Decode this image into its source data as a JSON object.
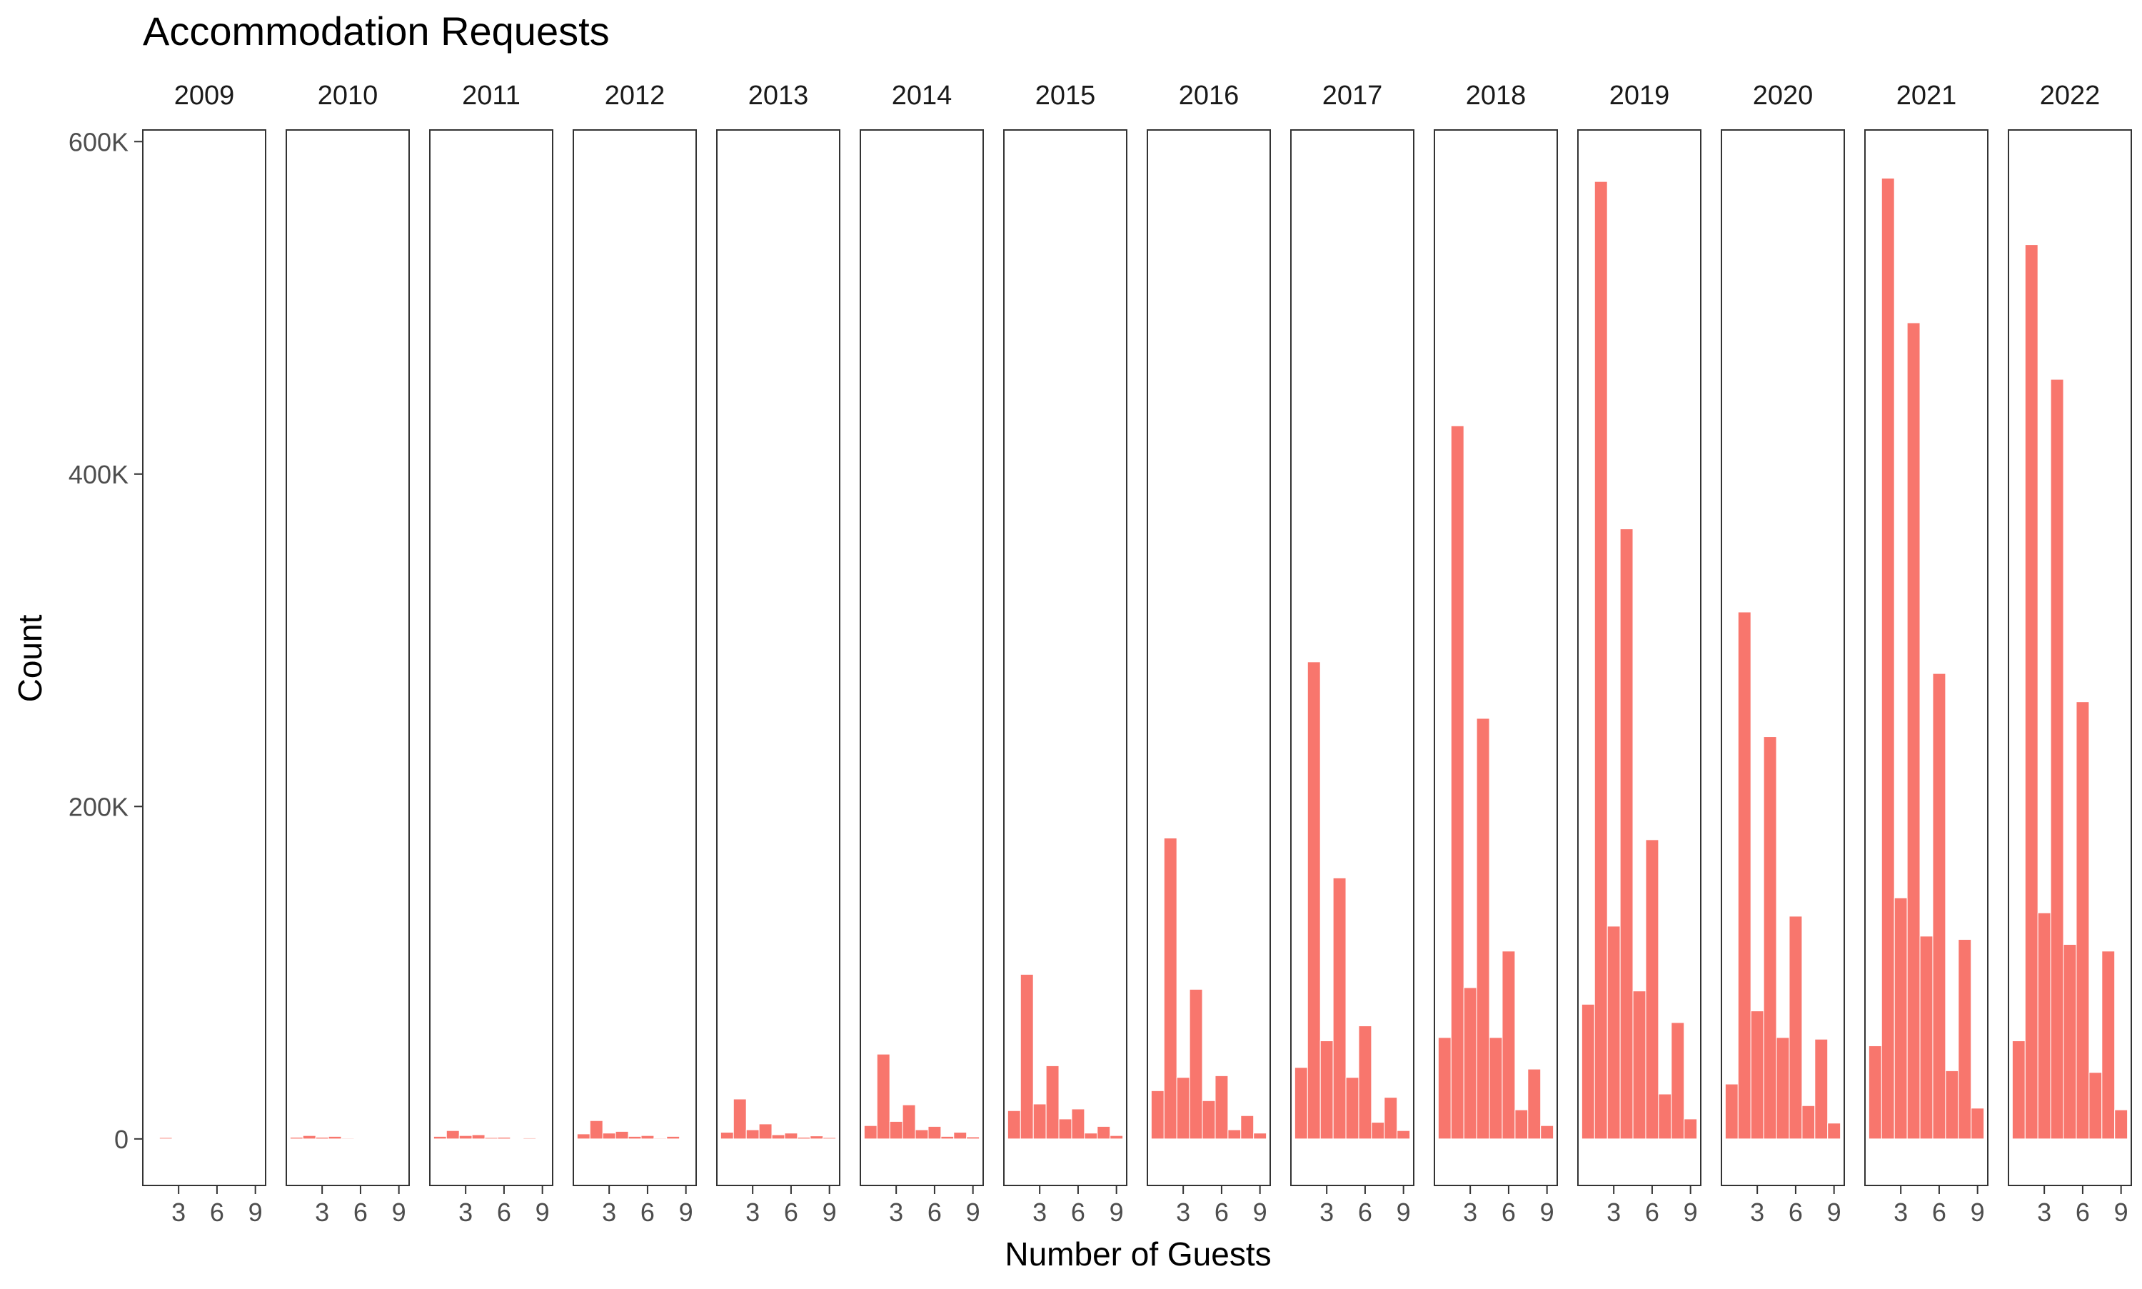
{
  "chart_data": {
    "type": "bar",
    "title": "Accommodation Requests",
    "xlabel": "Number of Guests",
    "ylabel": "Count",
    "ylim": [
      -28000,
      607000
    ],
    "xlim": [
      0.2,
      9.8
    ],
    "y_ticks": [
      {
        "value": 0,
        "label": "0"
      },
      {
        "value": 200000,
        "label": "200K"
      },
      {
        "value": 400000,
        "label": "400K"
      },
      {
        "value": 600000,
        "label": "600K"
      }
    ],
    "x_ticks": [
      {
        "value": 3,
        "label": "3"
      },
      {
        "value": 6,
        "label": "6"
      },
      {
        "value": 9,
        "label": "9"
      }
    ],
    "x": [
      1,
      2,
      3,
      4,
      5,
      6,
      7,
      8,
      9
    ],
    "facets": [
      {
        "label": "2009",
        "values": [
          300,
          800,
          300,
          200,
          100,
          100,
          0,
          0,
          0
        ]
      },
      {
        "label": "2010",
        "values": [
          1000,
          2000,
          1000,
          1500,
          500,
          300,
          100,
          200,
          100
        ]
      },
      {
        "label": "2011",
        "values": [
          1500,
          5000,
          2000,
          2500,
          800,
          1000,
          300,
          600,
          200
        ]
      },
      {
        "label": "2012",
        "values": [
          3000,
          11000,
          3500,
          4500,
          1500,
          2000,
          500,
          1500,
          400
        ]
      },
      {
        "label": "2013",
        "values": [
          4000,
          24000,
          5500,
          9000,
          2500,
          3500,
          1000,
          1800,
          800
        ]
      },
      {
        "label": "2014",
        "values": [
          8000,
          51000,
          10500,
          20500,
          5500,
          7500,
          1500,
          4000,
          1200
        ]
      },
      {
        "label": "2015",
        "values": [
          17000,
          99000,
          21000,
          44000,
          12000,
          18000,
          3500,
          7500,
          2000
        ]
      },
      {
        "label": "2016",
        "values": [
          29000,
          181000,
          37000,
          90000,
          23000,
          38000,
          5500,
          14000,
          3500
        ]
      },
      {
        "label": "2017",
        "values": [
          43000,
          287000,
          59000,
          157000,
          37000,
          68000,
          10000,
          25000,
          5000
        ]
      },
      {
        "label": "2018",
        "values": [
          61000,
          429000,
          91000,
          253000,
          61000,
          113000,
          17500,
          42000,
          8000
        ]
      },
      {
        "label": "2019",
        "values": [
          81000,
          576000,
          128000,
          367000,
          89000,
          180000,
          27000,
          70000,
          12000
        ]
      },
      {
        "label": "2020",
        "values": [
          33000,
          317000,
          77000,
          242000,
          61000,
          134000,
          20000,
          60000,
          9500
        ]
      },
      {
        "label": "2021",
        "values": [
          56000,
          578000,
          145000,
          491000,
          122000,
          280000,
          41000,
          120000,
          18500
        ]
      },
      {
        "label": "2022",
        "values": [
          59000,
          538000,
          136000,
          457000,
          117000,
          263000,
          40000,
          113000,
          17500
        ]
      }
    ],
    "colors": {
      "bar": "#F8766D",
      "bar_outline": "#ffffff",
      "panel_border": "#333333"
    },
    "grid": false,
    "legend": "none"
  }
}
